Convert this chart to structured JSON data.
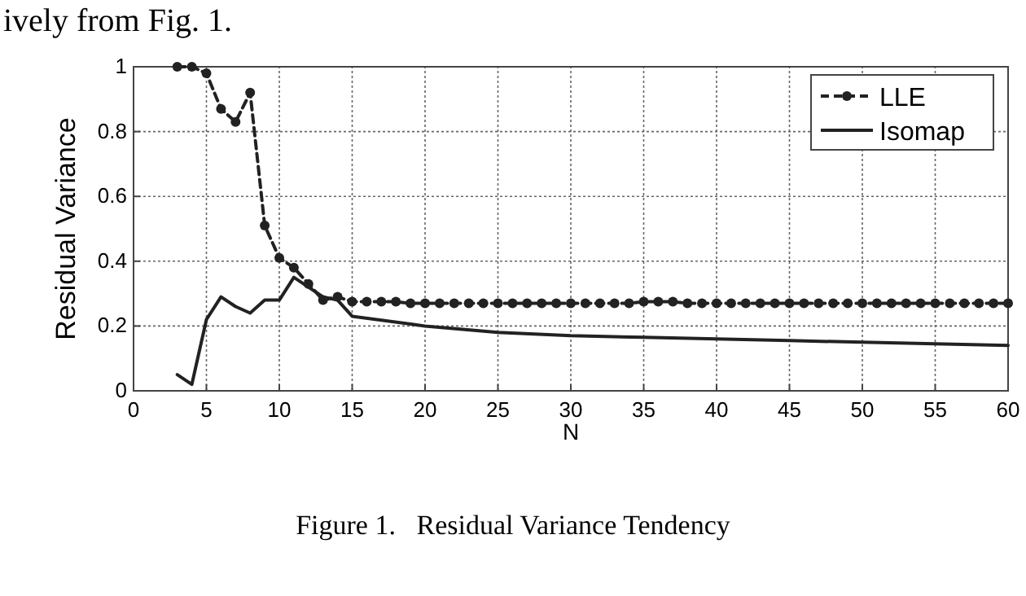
{
  "chart_data": {
    "type": "line",
    "xlabel": "N",
    "ylabel": "Residual Variance",
    "xlim": [
      0,
      60
    ],
    "ylim": [
      0,
      1
    ],
    "xticks": [
      0,
      5,
      10,
      15,
      20,
      25,
      30,
      35,
      40,
      45,
      50,
      55,
      60
    ],
    "yticks": [
      0,
      0.2,
      0.4,
      0.6,
      0.8,
      1
    ],
    "grid": true,
    "legend": "top right",
    "annotations": [
      "ively from Fig. 1.",
      "Figure 1.   Residual Variance Tendency"
    ],
    "series": [
      {
        "name": "LLE",
        "color": "#222222",
        "marker": "circle",
        "line_style": "dashed",
        "x": [
          3,
          4,
          5,
          6,
          7,
          8,
          9,
          10,
          11,
          12,
          13,
          14,
          15,
          16,
          17,
          18,
          19,
          20,
          21,
          22,
          23,
          24,
          25,
          26,
          27,
          28,
          29,
          30,
          31,
          32,
          33,
          34,
          35,
          36,
          37,
          38,
          39,
          40,
          41,
          42,
          43,
          44,
          45,
          46,
          47,
          48,
          49,
          50,
          51,
          52,
          53,
          54,
          55,
          56,
          57,
          58,
          59,
          60
        ],
        "values": [
          1.0,
          1.0,
          0.98,
          0.87,
          0.83,
          0.92,
          0.51,
          0.41,
          0.38,
          0.33,
          0.28,
          0.29,
          0.275,
          0.275,
          0.275,
          0.275,
          0.27,
          0.27,
          0.27,
          0.27,
          0.27,
          0.27,
          0.27,
          0.27,
          0.27,
          0.27,
          0.27,
          0.27,
          0.27,
          0.27,
          0.27,
          0.27,
          0.275,
          0.275,
          0.275,
          0.27,
          0.27,
          0.27,
          0.27,
          0.27,
          0.27,
          0.27,
          0.27,
          0.27,
          0.27,
          0.27,
          0.27,
          0.27,
          0.27,
          0.27,
          0.27,
          0.27,
          0.27,
          0.27,
          0.27,
          0.27,
          0.27,
          0.27
        ]
      },
      {
        "name": "Isomap",
        "color": "#222222",
        "marker": "none",
        "line_style": "solid",
        "x": [
          3,
          4,
          5,
          6,
          7,
          8,
          9,
          10,
          11,
          12,
          13,
          14,
          15,
          20,
          25,
          30,
          35,
          40,
          45,
          50,
          55,
          60
        ],
        "values": [
          0.05,
          0.02,
          0.22,
          0.29,
          0.26,
          0.24,
          0.28,
          0.28,
          0.35,
          0.32,
          0.29,
          0.28,
          0.23,
          0.2,
          0.18,
          0.17,
          0.165,
          0.16,
          0.155,
          0.15,
          0.145,
          0.14
        ]
      }
    ]
  }
}
